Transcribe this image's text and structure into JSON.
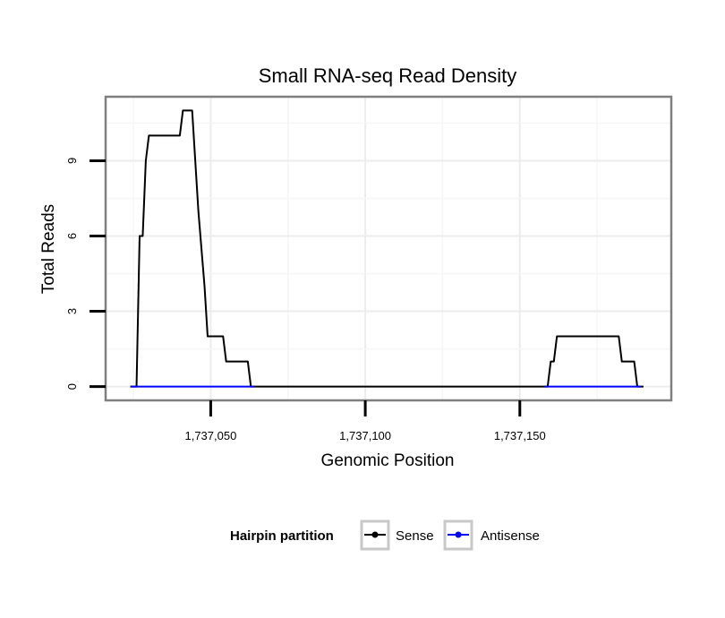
{
  "chart_data": {
    "type": "line",
    "title": "Small RNA-seq Read Density",
    "xlabel": "Genomic Position",
    "ylabel": "Total Reads",
    "xlim": [
      1737016,
      1737199
    ],
    "ylim": [
      -0.55,
      11.55
    ],
    "xticks": [
      1737050,
      1737100,
      1737150
    ],
    "xtick_labels": [
      "1,737,050",
      "1,737,100",
      "1,737,150"
    ],
    "yticks": [
      0,
      3,
      6,
      9
    ],
    "ytick_labels": [
      "0",
      "3",
      "6",
      "9"
    ],
    "grid": true,
    "legend": {
      "title": "Hairpin partition",
      "position": "bottom",
      "entries": [
        "Sense",
        "Antisense"
      ]
    },
    "series": [
      {
        "name": "Sense",
        "color": "#000000",
        "x": [
          1737024,
          1737026,
          1737027,
          1737028,
          1737029,
          1737030,
          1737031,
          1737032,
          1737033,
          1737034,
          1737035,
          1737036,
          1737037,
          1737038,
          1737039,
          1737040,
          1737041,
          1737042,
          1737043,
          1737044,
          1737045,
          1737046,
          1737047,
          1737048,
          1737049,
          1737050,
          1737051,
          1737052,
          1737053,
          1737054,
          1737055,
          1737056,
          1737057,
          1737058,
          1737059,
          1737060,
          1737061,
          1737062,
          1737063,
          1737064,
          1737100,
          1737134,
          1737158,
          1737159,
          1737160,
          1737161,
          1737162,
          1737165,
          1737170,
          1737175,
          1737180,
          1737181,
          1737182,
          1737183,
          1737184,
          1737185,
          1737186,
          1737187,
          1737188,
          1737190
        ],
        "y": [
          0,
          0,
          6,
          6,
          9,
          10,
          10,
          10,
          10,
          10,
          10,
          10,
          10,
          10,
          10,
          10,
          11,
          11,
          11,
          11,
          9,
          7,
          5.5,
          4,
          2,
          2,
          2,
          2,
          2,
          2,
          1,
          1,
          1,
          1,
          1,
          1,
          1,
          1,
          0,
          0,
          0,
          0,
          0,
          0,
          1,
          1,
          2,
          2,
          2,
          2,
          2,
          2,
          2,
          1,
          1,
          1,
          1,
          1,
          0,
          0
        ]
      },
      {
        "name": "Antisense",
        "color": "#0000ff",
        "x": [
          1737024,
          1737064
        ],
        "y": [
          0,
          0
        ]
      },
      {
        "name": "Antisense",
        "color": "#0000ff",
        "x": [
          1737158,
          1737189
        ],
        "y": [
          0,
          0
        ]
      }
    ]
  }
}
